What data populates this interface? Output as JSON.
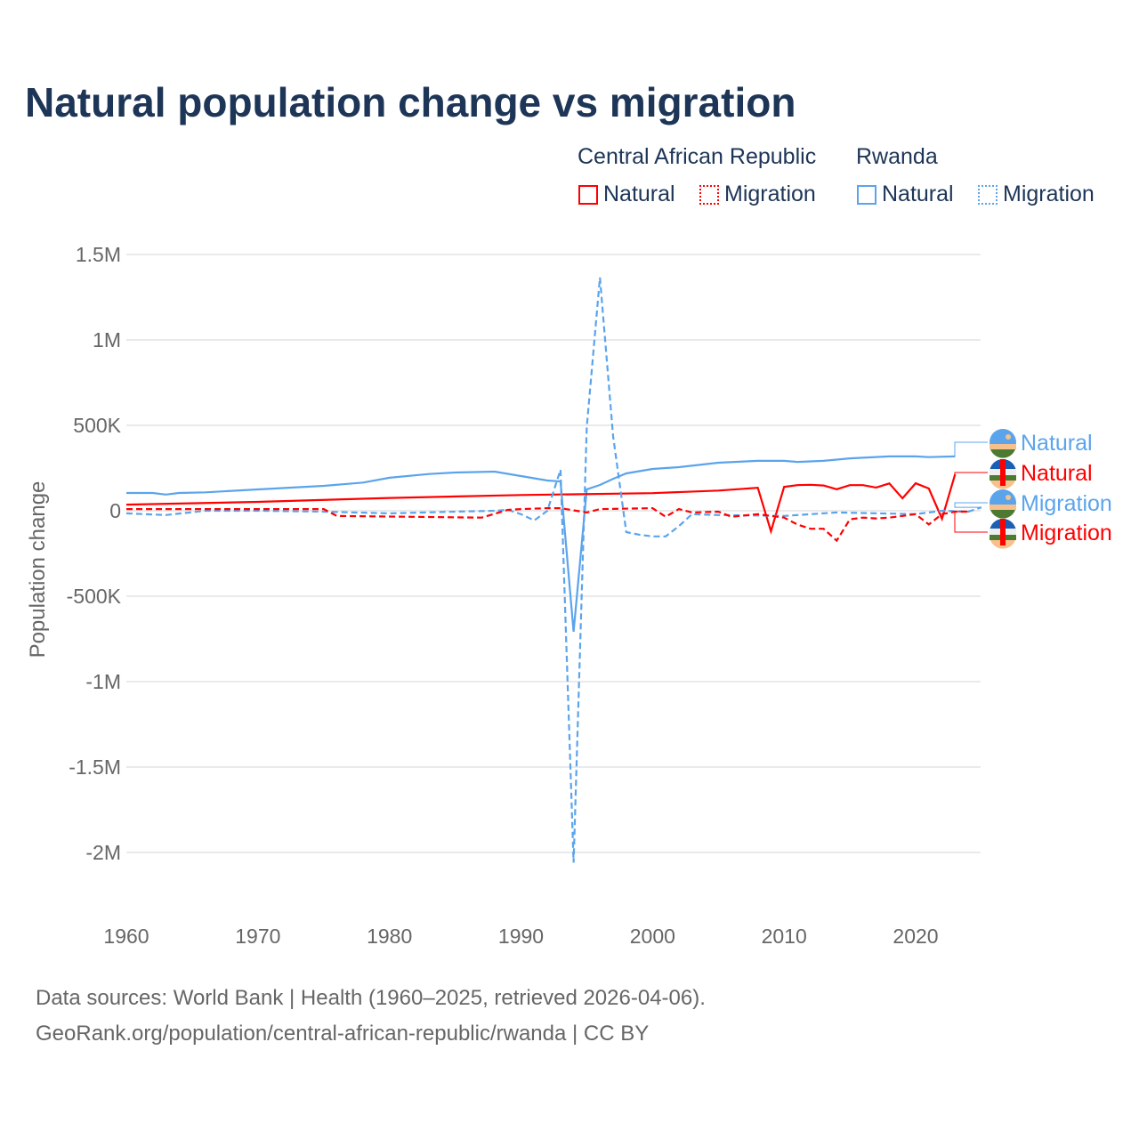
{
  "title": "Natural population change vs migration",
  "legend": {
    "groups": [
      {
        "name": "Central African Republic",
        "color": "#ff0000",
        "items": [
          "Natural",
          "Migration"
        ]
      },
      {
        "name": "Rwanda",
        "color": "#5ba4ec",
        "items": [
          "Natural",
          "Migration"
        ]
      }
    ]
  },
  "footer": {
    "line1": "Data sources: World Bank | Health (1960–2025, retrieved 2026-04-06).",
    "line2": "GeoRank.org/population/central-african-republic/rwanda | CC BY"
  },
  "chart_data": {
    "type": "line",
    "title": "Natural population change vs migration",
    "xlabel": "",
    "ylabel": "Population change",
    "xlim": [
      1960,
      2025
    ],
    "ylim": [
      -2200000,
      1500000
    ],
    "x_ticks": [
      1960,
      1970,
      1980,
      1990,
      2000,
      2010,
      2020
    ],
    "x_tick_labels": [
      "1960",
      "1970",
      "1980",
      "1990",
      "2000",
      "2010",
      "2020"
    ],
    "y_ticks": [
      1500000,
      1000000,
      500000,
      0,
      -500000,
      -1000000,
      -1500000,
      -2000000
    ],
    "y_tick_labels": [
      "1.5M",
      "1M",
      "500K",
      "0",
      "-500K",
      "-1M",
      "-1.5M",
      "-2M"
    ],
    "grid": true,
    "series": [
      {
        "name": "Natural",
        "country": "Rwanda",
        "color": "#5ba4ec",
        "dash": false,
        "end_label": "Natural",
        "points": [
          [
            1960,
            104000
          ],
          [
            1962,
            104000
          ],
          [
            1963,
            95000
          ],
          [
            1964,
            104000
          ],
          [
            1966,
            108000
          ],
          [
            1970,
            125000
          ],
          [
            1975,
            146000
          ],
          [
            1978,
            165000
          ],
          [
            1980,
            193000
          ],
          [
            1983,
            215000
          ],
          [
            1985,
            224000
          ],
          [
            1988,
            229000
          ],
          [
            1990,
            203000
          ],
          [
            1992,
            177000
          ],
          [
            1993,
            172000
          ],
          [
            1994,
            -708000
          ],
          [
            1995,
            125000
          ],
          [
            1996,
            151000
          ],
          [
            1997,
            187000
          ],
          [
            1998,
            219000
          ],
          [
            2000,
            245000
          ],
          [
            2002,
            255000
          ],
          [
            2005,
            281000
          ],
          [
            2008,
            292000
          ],
          [
            2010,
            292000
          ],
          [
            2011,
            286000
          ],
          [
            2013,
            292000
          ],
          [
            2015,
            307000
          ],
          [
            2018,
            318000
          ],
          [
            2020,
            318000
          ],
          [
            2021,
            314000
          ],
          [
            2023,
            318000
          ]
        ]
      },
      {
        "name": "Natural",
        "country": "Central African Republic",
        "color": "#ff0000",
        "dash": false,
        "end_label": "Natural",
        "points": [
          [
            1960,
            36000
          ],
          [
            1970,
            52000
          ],
          [
            1980,
            75000
          ],
          [
            1990,
            92000
          ],
          [
            2000,
            103000
          ],
          [
            2005,
            118000
          ],
          [
            2008,
            135000
          ],
          [
            2009,
            -120000
          ],
          [
            2010,
            140000
          ],
          [
            2011,
            150000
          ],
          [
            2012,
            152000
          ],
          [
            2013,
            148000
          ],
          [
            2014,
            126000
          ],
          [
            2015,
            150000
          ],
          [
            2016,
            150000
          ],
          [
            2017,
            136000
          ],
          [
            2018,
            160000
          ],
          [
            2019,
            73000
          ],
          [
            2020,
            161000
          ],
          [
            2021,
            130000
          ],
          [
            2022,
            -47000
          ],
          [
            2023,
            213000
          ]
        ]
      },
      {
        "name": "Migration",
        "country": "Rwanda",
        "color": "#5ba4ec",
        "dash": true,
        "end_label": "Migration",
        "points": [
          [
            1960,
            -15000
          ],
          [
            1963,
            -25000
          ],
          [
            1966,
            0
          ],
          [
            1970,
            0
          ],
          [
            1975,
            -5000
          ],
          [
            1980,
            -15000
          ],
          [
            1985,
            -5000
          ],
          [
            1988,
            0
          ],
          [
            1989,
            5000
          ],
          [
            1990,
            -20000
          ],
          [
            1991,
            -57000
          ],
          [
            1992,
            0
          ],
          [
            1993,
            240000
          ],
          [
            1994,
            -2060000
          ],
          [
            1995,
            490000
          ],
          [
            1996,
            1365000
          ],
          [
            1997,
            437000
          ],
          [
            1998,
            -125000
          ],
          [
            1999,
            -140000
          ],
          [
            2000,
            -150000
          ],
          [
            2001,
            -150000
          ],
          [
            2002,
            -90000
          ],
          [
            2003,
            -20000
          ],
          [
            2005,
            -25000
          ],
          [
            2010,
            -30000
          ],
          [
            2014,
            -10000
          ],
          [
            2020,
            -20000
          ],
          [
            2022,
            0
          ],
          [
            2024,
            -5000
          ],
          [
            2025,
            20000
          ]
        ]
      },
      {
        "name": "Migration",
        "country": "Central African Republic",
        "color": "#ff0000",
        "dash": true,
        "end_label": "Migration",
        "points": [
          [
            1960,
            10000
          ],
          [
            1975,
            10000
          ],
          [
            1976,
            -30000
          ],
          [
            1987,
            -40000
          ],
          [
            1989,
            5000
          ],
          [
            1990,
            10000
          ],
          [
            1992,
            15000
          ],
          [
            1993,
            15000
          ],
          [
            1995,
            -10000
          ],
          [
            1996,
            10000
          ],
          [
            2000,
            15000
          ],
          [
            2001,
            -35000
          ],
          [
            2002,
            10000
          ],
          [
            2003,
            -10000
          ],
          [
            2005,
            -5000
          ],
          [
            2006,
            -35000
          ],
          [
            2008,
            -20000
          ],
          [
            2010,
            -40000
          ],
          [
            2011,
            -80000
          ],
          [
            2012,
            -105000
          ],
          [
            2013,
            -105000
          ],
          [
            2014,
            -175000
          ],
          [
            2015,
            -50000
          ],
          [
            2016,
            -40000
          ],
          [
            2017,
            -45000
          ],
          [
            2018,
            -40000
          ],
          [
            2019,
            -30000
          ],
          [
            2020,
            -20000
          ],
          [
            2021,
            -80000
          ],
          [
            2022,
            -20000
          ],
          [
            2023,
            -5000
          ],
          [
            2024,
            -5000
          ]
        ]
      }
    ]
  }
}
